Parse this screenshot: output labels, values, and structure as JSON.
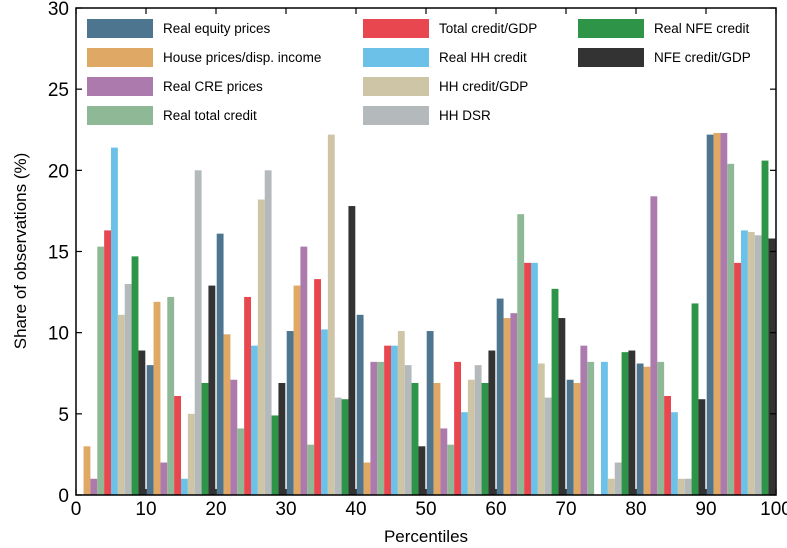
{
  "chart_data": {
    "type": "bar",
    "xlabel": "Percentiles",
    "ylabel": "Share of observations (%)",
    "xlim": [
      0,
      100
    ],
    "ylim": [
      0,
      30
    ],
    "xticks": [
      0,
      10,
      20,
      30,
      40,
      50,
      60,
      70,
      80,
      90,
      100
    ],
    "yticks": [
      0,
      5,
      10,
      15,
      20,
      25,
      30
    ],
    "bin_width": 10,
    "grid": false,
    "legend_placement": "top",
    "bins": [
      0,
      10,
      20,
      30,
      40,
      50,
      60,
      70,
      80,
      90
    ],
    "series": [
      {
        "name": "Real equity prices",
        "color": "#4e7590",
        "values": [
          0,
          8,
          16.1,
          10.1,
          11.1,
          10.1,
          12.1,
          7.1,
          8.1,
          22.2
        ]
      },
      {
        "name": "House prices/disp. income",
        "color": "#e0a865",
        "values": [
          3,
          11.9,
          9.9,
          12.9,
          2,
          6.9,
          10.9,
          6.9,
          7.9,
          22.3
        ]
      },
      {
        "name": "Real CRE prices",
        "color": "#ac7aad",
        "values": [
          1,
          2,
          7.1,
          15.3,
          8.2,
          4.1,
          11.2,
          9.2,
          18.4,
          22.3
        ]
      },
      {
        "name": "Real total credit",
        "color": "#8fb996",
        "values": [
          15.3,
          12.2,
          4.1,
          3.1,
          8.2,
          3.1,
          17.3,
          8.2,
          8.2,
          20.4
        ]
      },
      {
        "name": "Total credit/GDP",
        "color": "#e8474f",
        "values": [
          16.3,
          6.1,
          12.2,
          13.3,
          9.2,
          8.2,
          14.3,
          0,
          6.1,
          14.3
        ]
      },
      {
        "name": "Real HH credit",
        "color": "#6cc1e8",
        "values": [
          21.4,
          1,
          9.2,
          10.2,
          9.2,
          5.1,
          14.3,
          8.2,
          5.1,
          16.3
        ]
      },
      {
        "name": "HH credit/GDP",
        "color": "#cdc5a6",
        "values": [
          11.1,
          5,
          18.2,
          22.2,
          10.1,
          7.1,
          8.1,
          1,
          1,
          16.2
        ]
      },
      {
        "name": "HH DSR",
        "color": "#b4b9bb",
        "values": [
          13,
          20,
          20,
          6,
          8,
          8,
          6,
          2,
          1,
          16
        ]
      },
      {
        "name": "Real NFE credit",
        "color": "#2e9548",
        "values": [
          14.7,
          6.9,
          4.9,
          5.9,
          6.9,
          6.9,
          12.7,
          8.8,
          11.8,
          20.6
        ]
      },
      {
        "name": "NFE credit/GDP",
        "color": "#333333",
        "values": [
          8.9,
          12.9,
          6.9,
          17.8,
          3,
          8.9,
          10.9,
          8.9,
          5.9,
          15.8
        ]
      }
    ]
  }
}
